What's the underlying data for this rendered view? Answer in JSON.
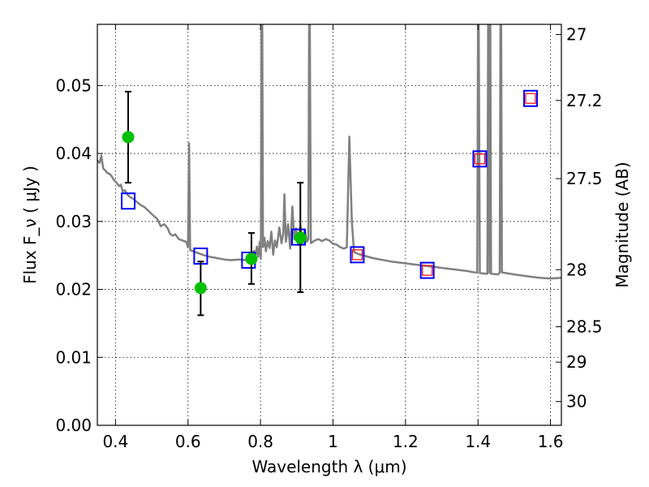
{
  "chart_data": {
    "type": "scatter",
    "xlabel": "Wavelength  λ (μm)",
    "ylabel": "Flux  F_ν  ( μJy )",
    "ylabel_right": "Magnitude (AB)",
    "xlim": [
      0.35,
      1.63
    ],
    "ylim": [
      0.0,
      0.059
    ],
    "x_ticks": [
      0.4,
      0.6,
      0.8,
      1.0,
      1.2,
      1.4,
      1.6
    ],
    "x_tick_labels": [
      "0.4",
      "0.6",
      "0.8",
      "1",
      "1.2",
      "1.4",
      "1.6"
    ],
    "y_ticks": [
      0.0,
      0.01,
      0.02,
      0.03,
      0.04,
      0.05
    ],
    "y_tick_labels": [
      "0.00",
      "0.01",
      "0.02",
      "0.03",
      "0.04",
      "0.05"
    ],
    "right_ticks": [
      {
        "flux": 0.0575,
        "label": "27"
      },
      {
        "flux": 0.0478,
        "label": "27.2"
      },
      {
        "flux": 0.0363,
        "label": "27.5"
      },
      {
        "flux": 0.0229,
        "label": "28"
      },
      {
        "flux": 0.0145,
        "label": "28.5"
      },
      {
        "flux": 0.0093,
        "label": "29"
      },
      {
        "flux": 0.0035,
        "label": "30"
      }
    ],
    "grid": true,
    "series": [
      {
        "kind": "line",
        "color": "#808080",
        "points": [
          [
            0.35,
            0.039
          ],
          [
            0.356,
            0.0386
          ],
          [
            0.361,
            0.0397
          ],
          [
            0.366,
            0.0378
          ],
          [
            0.372,
            0.0375
          ],
          [
            0.378,
            0.0371
          ],
          [
            0.384,
            0.037
          ],
          [
            0.39,
            0.0366
          ],
          [
            0.397,
            0.036
          ],
          [
            0.403,
            0.0357
          ],
          [
            0.41,
            0.0352
          ],
          [
            0.415,
            0.0354
          ],
          [
            0.42,
            0.0344
          ],
          [
            0.426,
            0.0346
          ],
          [
            0.432,
            0.034
          ],
          [
            0.44,
            0.0336
          ],
          [
            0.45,
            0.0333
          ],
          [
            0.46,
            0.0328
          ],
          [
            0.47,
            0.0324
          ],
          [
            0.48,
            0.0321
          ],
          [
            0.49,
            0.0316
          ],
          [
            0.5,
            0.0311
          ],
          [
            0.51,
            0.0306
          ],
          [
            0.515,
            0.0304
          ],
          [
            0.525,
            0.0293
          ],
          [
            0.535,
            0.0296
          ],
          [
            0.545,
            0.0289
          ],
          [
            0.55,
            0.0282
          ],
          [
            0.558,
            0.0279
          ],
          [
            0.565,
            0.0281
          ],
          [
            0.575,
            0.0274
          ],
          [
            0.585,
            0.0272
          ],
          [
            0.595,
            0.027
          ],
          [
            0.6,
            0.0262
          ],
          [
            0.603,
            0.0415
          ],
          [
            0.606,
            0.0258
          ],
          [
            0.615,
            0.0256
          ],
          [
            0.625,
            0.0254
          ],
          [
            0.64,
            0.0251
          ],
          [
            0.66,
            0.0248
          ],
          [
            0.68,
            0.0246
          ],
          [
            0.7,
            0.0244
          ],
          [
            0.72,
            0.0243
          ],
          [
            0.74,
            0.0244
          ],
          [
            0.76,
            0.0243
          ],
          [
            0.775,
            0.0246
          ],
          [
            0.782,
            0.0257
          ],
          [
            0.786,
            0.0245
          ],
          [
            0.79,
            0.0263
          ],
          [
            0.794,
            0.0248
          ],
          [
            0.798,
            0.027
          ],
          [
            0.801,
            0.0245
          ],
          [
            0.803,
            0.059
          ],
          [
            0.805,
            0.059
          ],
          [
            0.807,
            0.0262
          ],
          [
            0.811,
            0.0276
          ],
          [
            0.815,
            0.0256
          ],
          [
            0.82,
            0.0271
          ],
          [
            0.825,
            0.0261
          ],
          [
            0.83,
            0.0285
          ],
          [
            0.835,
            0.0251
          ],
          [
            0.84,
            0.0272
          ],
          [
            0.845,
            0.0262
          ],
          [
            0.852,
            0.0291
          ],
          [
            0.858,
            0.0268
          ],
          [
            0.863,
            0.0282
          ],
          [
            0.866,
            0.034
          ],
          [
            0.87,
            0.027
          ],
          [
            0.876,
            0.0296
          ],
          [
            0.882,
            0.026
          ],
          [
            0.888,
            0.0322
          ],
          [
            0.893,
            0.0274
          ],
          [
            0.898,
            0.029
          ],
          [
            0.904,
            0.0265
          ],
          [
            0.91,
            0.0294
          ],
          [
            0.916,
            0.0267
          ],
          [
            0.922,
            0.0288
          ],
          [
            0.928,
            0.027
          ],
          [
            0.932,
            0.0274
          ],
          [
            0.934,
            0.059
          ],
          [
            0.936,
            0.059
          ],
          [
            0.939,
            0.0268
          ],
          [
            0.95,
            0.0272
          ],
          [
            0.96,
            0.0274
          ],
          [
            0.97,
            0.0271
          ],
          [
            0.98,
            0.0274
          ],
          [
            0.99,
            0.0272
          ],
          [
            1.0,
            0.0267
          ],
          [
            1.01,
            0.0266
          ],
          [
            1.02,
            0.0262
          ],
          [
            1.03,
            0.026
          ],
          [
            1.038,
            0.0262
          ],
          [
            1.045,
            0.0425
          ],
          [
            1.052,
            0.03
          ],
          [
            1.058,
            0.0255
          ],
          [
            1.07,
            0.0252
          ],
          [
            1.09,
            0.0249
          ],
          [
            1.11,
            0.0246
          ],
          [
            1.13,
            0.0244
          ],
          [
            1.16,
            0.0241
          ],
          [
            1.19,
            0.0239
          ],
          [
            1.22,
            0.0237
          ],
          [
            1.25,
            0.0235
          ],
          [
            1.28,
            0.0233
          ],
          [
            1.31,
            0.0231
          ],
          [
            1.34,
            0.0229
          ],
          [
            1.37,
            0.0227
          ],
          [
            1.39,
            0.0225
          ],
          [
            1.398,
            0.0225
          ],
          [
            1.4,
            0.059
          ],
          [
            1.402,
            0.059
          ],
          [
            1.405,
            0.0224
          ],
          [
            1.42,
            0.0223
          ],
          [
            1.426,
            0.0223
          ],
          [
            1.428,
            0.059
          ],
          [
            1.43,
            0.059
          ],
          [
            1.432,
            0.0224
          ],
          [
            1.434,
            0.059
          ],
          [
            1.436,
            0.0223
          ],
          [
            1.456,
            0.0222
          ],
          [
            1.46,
            0.0225
          ],
          [
            1.462,
            0.059
          ],
          [
            1.464,
            0.059
          ],
          [
            1.466,
            0.0225
          ],
          [
            1.5,
            0.0222
          ],
          [
            1.54,
            0.0219
          ],
          [
            1.57,
            0.0217
          ],
          [
            1.6,
            0.0216
          ],
          [
            1.63,
            0.0217
          ]
        ]
      },
      {
        "kind": "squares",
        "color": "#0000ff",
        "points": [
          [
            0.435,
            0.033
          ],
          [
            0.635,
            0.0249
          ],
          [
            0.767,
            0.0243
          ],
          [
            0.905,
            0.0277
          ],
          [
            1.067,
            0.0251
          ],
          [
            1.26,
            0.0228
          ],
          [
            1.405,
            0.0392
          ],
          [
            1.545,
            0.0481
          ]
        ]
      },
      {
        "kind": "small-squares",
        "color": "#ff0000",
        "points": [
          [
            1.067,
            0.0251
          ],
          [
            1.26,
            0.0228
          ],
          [
            1.405,
            0.0392
          ],
          [
            1.545,
            0.0481
          ]
        ]
      },
      {
        "kind": "points-with-errors",
        "color": "#00c000",
        "points": [
          {
            "x": 0.435,
            "y": 0.0424,
            "ylo": 0.0357,
            "yhi": 0.0491
          },
          {
            "x": 0.635,
            "y": 0.0202,
            "ylo": 0.0162,
            "yhi": 0.0241
          },
          {
            "x": 0.775,
            "y": 0.0245,
            "ylo": 0.0208,
            "yhi": 0.0283
          },
          {
            "x": 0.91,
            "y": 0.0276,
            "ylo": 0.0196,
            "yhi": 0.0357
          }
        ]
      }
    ]
  }
}
